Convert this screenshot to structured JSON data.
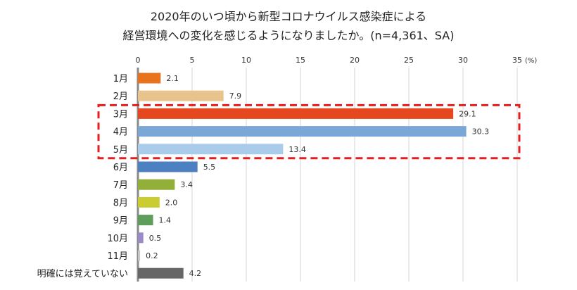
{
  "chart_data": {
    "type": "bar",
    "orientation": "horizontal",
    "title": [
      "2020年のいつ頃から新型コロナウイルス感染症による",
      "経営環境への変化を感じるようになりましたか。(n=4,361、SA)"
    ],
    "unit": "(%)",
    "xlim": [
      0,
      35
    ],
    "ticks": [
      0,
      5,
      10,
      15,
      20,
      25,
      30,
      35
    ],
    "grid": true,
    "categories": [
      "1月",
      "2月",
      "3月",
      "4月",
      "5月",
      "6月",
      "7月",
      "8月",
      "9月",
      "10月",
      "11月",
      "明確には覚えていない"
    ],
    "values": [
      2.1,
      7.9,
      29.1,
      30.3,
      13.4,
      5.5,
      3.4,
      2.0,
      1.4,
      0.5,
      0.2,
      4.2
    ],
    "value_labels": [
      "2.1",
      "7.9",
      "29.1",
      "30.3",
      "13.4",
      "5.5",
      "3.4",
      "2.0",
      "1.4",
      "0.5",
      "0.2",
      "4.2"
    ],
    "colors": [
      "#E8731E",
      "#E8C48C",
      "#E5471E",
      "#7BA7D6",
      "#A9CCEA",
      "#4C80C0",
      "#92AF3A",
      "#C9CC32",
      "#5E9E5A",
      "#9A8BC8",
      "#C8C8CC",
      "#666666"
    ],
    "highlight": {
      "categories": [
        "3月",
        "4月",
        "5月"
      ],
      "color": "#E02020",
      "style": "dashed"
    }
  }
}
